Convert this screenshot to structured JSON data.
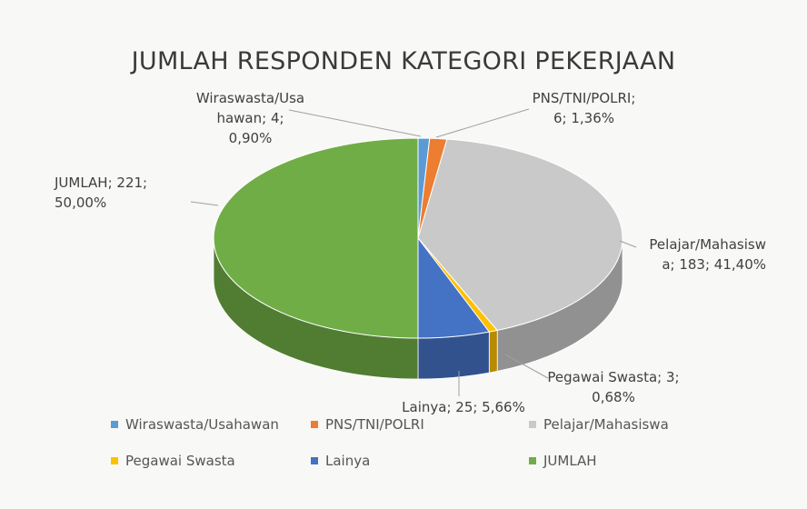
{
  "chart_data": {
    "type": "pie3d",
    "title": "JUMLAH RESPONDEN KATEGORI PEKERJAAN",
    "categories": [
      "Wiraswasta/Usahawan",
      "PNS/TNI/POLRI",
      "Pelajar/Mahasiswa",
      "Pegawai Swasta",
      "Lainya",
      "JUMLAH"
    ],
    "values": [
      4,
      6,
      183,
      3,
      25,
      221
    ],
    "value_labels": [
      "Wiraswasta/Usahawan; 4; 0,90%",
      "PNS/TNI/POLRI; 6; 1,36%",
      "Pelajar/Mahasiswa; 183; 41,40%",
      "Pegawai Swasta; 3; 0,68%",
      "Lainya; 25; 5,66%",
      "JUMLAH; 221; 50,00%"
    ],
    "colors": [
      "#5b9bd5",
      "#ed7d31",
      "#c9c9c9",
      "#ffc000",
      "#4472c4",
      "#70ad47"
    ],
    "legend": "bottom"
  }
}
